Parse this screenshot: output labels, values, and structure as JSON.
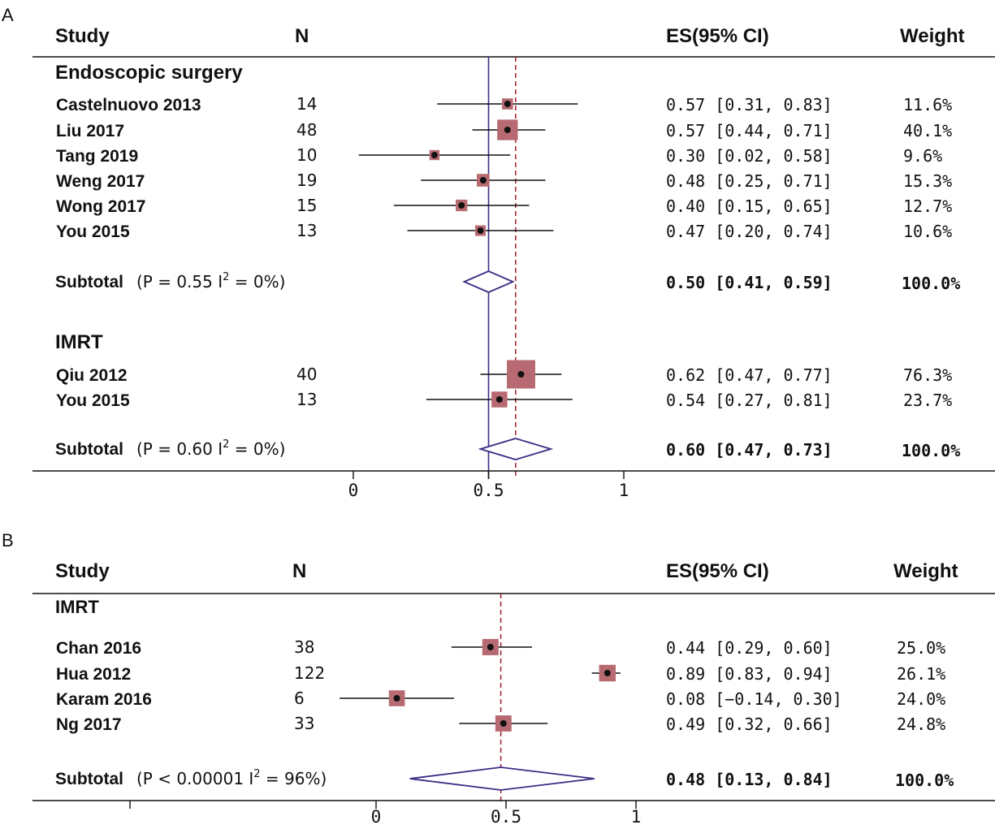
{
  "chart_data": [
    {
      "type": "forest",
      "panel_label": "A",
      "headers": {
        "study": "Study",
        "n": "N",
        "es": "ES(95% CI)",
        "weight": "Weight"
      },
      "axis": {
        "ticks": [
          "0",
          "0.5",
          "1"
        ],
        "tick_values": [
          0,
          0.5,
          1
        ],
        "xlim": [
          0,
          1
        ]
      },
      "reference_lines": {
        "null_value": 0.5,
        "overall_estimate": 0.6
      },
      "groups": [
        {
          "name": "Endoscopic surgery",
          "studies": [
            {
              "label": "Castelnuovo 2013",
              "n": "14",
              "es": 0.57,
              "lo": 0.31,
              "hi": 0.83,
              "es_text": "0.57 [0.31, 0.83]",
              "weight_text": "11.6%",
              "weight": 11.6
            },
            {
              "label": "Liu 2017",
              "n": "48",
              "es": 0.57,
              "lo": 0.44,
              "hi": 0.71,
              "es_text": "0.57 [0.44, 0.71]",
              "weight_text": "40.1%",
              "weight": 40.1
            },
            {
              "label": "Tang 2019",
              "n": "10",
              "es": 0.3,
              "lo": 0.02,
              "hi": 0.58,
              "es_text": "0.30 [0.02, 0.58]",
              "weight_text": "9.6%",
              "weight": 9.6
            },
            {
              "label": "Weng 2017",
              "n": "19",
              "es": 0.48,
              "lo": 0.25,
              "hi": 0.71,
              "es_text": "0.48 [0.25, 0.71]",
              "weight_text": "15.3%",
              "weight": 15.3
            },
            {
              "label": "Wong 2017",
              "n": "15",
              "es": 0.4,
              "lo": 0.15,
              "hi": 0.65,
              "es_text": "0.40 [0.15, 0.65]",
              "weight_text": "12.7%",
              "weight": 12.7
            },
            {
              "label": "You 2015",
              "n": "13",
              "es": 0.47,
              "lo": 0.2,
              "hi": 0.74,
              "es_text": "0.47 [0.20, 0.74]",
              "weight_text": "10.6%",
              "weight": 10.6
            }
          ],
          "subtotal": {
            "label": "Subtotal",
            "stats_pre": "(P = 0.55   I",
            "stats_sup": "2",
            "stats_post": " = 0%)",
            "es": 0.5,
            "lo": 0.41,
            "hi": 0.59,
            "es_text": "0.50 [0.41, 0.59]",
            "weight_text": "100.0%"
          }
        },
        {
          "name": "IMRT",
          "studies": [
            {
              "label": "Qiu 2012",
              "n": "40",
              "es": 0.62,
              "lo": 0.47,
              "hi": 0.77,
              "es_text": "0.62 [0.47, 0.77]",
              "weight_text": "76.3%",
              "weight": 76.3
            },
            {
              "label": "You 2015",
              "n": "13",
              "es": 0.54,
              "lo": 0.27,
              "hi": 0.81,
              "es_text": "0.54 [0.27, 0.81]",
              "weight_text": "23.7%",
              "weight": 23.7
            }
          ],
          "subtotal": {
            "label": "Subtotal",
            "stats_pre": "(P = 0.60   I",
            "stats_sup": "2",
            "stats_post": " = 0%)",
            "es": 0.6,
            "lo": 0.47,
            "hi": 0.73,
            "es_text": "0.60 [0.47, 0.73]",
            "weight_text": "100.0%"
          }
        }
      ]
    },
    {
      "type": "forest",
      "panel_label": "B",
      "headers": {
        "study": "Study",
        "n": "N",
        "es": "ES(95% CI)",
        "weight": "Weight"
      },
      "axis": {
        "ticks": [
          "0",
          "0.5",
          "1"
        ],
        "tick_values": [
          0,
          0.5,
          1
        ],
        "xlim": [
          -0.5,
          1
        ]
      },
      "reference_lines": {
        "overall_estimate": 0.48
      },
      "groups": [
        {
          "name": "IMRT",
          "studies": [
            {
              "label": "Chan 2016",
              "n": "38",
              "es": 0.44,
              "lo": 0.29,
              "hi": 0.6,
              "es_text": "0.44 [0.29, 0.60]",
              "weight_text": "25.0%",
              "weight": 25.0
            },
            {
              "label": "Hua 2012",
              "n": "122",
              "es": 0.89,
              "lo": 0.83,
              "hi": 0.94,
              "es_text": "0.89 [0.83, 0.94]",
              "weight_text": "26.1%",
              "weight": 26.1
            },
            {
              "label": "Karam 2016",
              "n": "6",
              "es": 0.08,
              "lo": -0.14,
              "hi": 0.3,
              "es_text": "0.08 [−0.14, 0.30]",
              "weight_text": "24.0%",
              "weight": 24.0
            },
            {
              "label": "Ng 2017",
              "n": "33",
              "es": 0.49,
              "lo": 0.32,
              "hi": 0.66,
              "es_text": "0.49 [0.32, 0.66]",
              "weight_text": "24.8%",
              "weight": 24.8
            }
          ],
          "subtotal": {
            "label": "Subtotal",
            "stats_pre": "(P < 0.00001   I",
            "stats_sup": "2",
            "stats_post": " = 96%)",
            "es": 0.48,
            "lo": 0.13,
            "hi": 0.84,
            "es_text": "0.48 [0.13, 0.84]",
            "weight_text": "100.0%"
          }
        }
      ]
    }
  ],
  "colors": {
    "null_line": "#3d2a85",
    "estimate_line": "#a01c2c",
    "weight_box": "#b86a72",
    "diamond": "#3d2a85",
    "ink": "#111111"
  }
}
